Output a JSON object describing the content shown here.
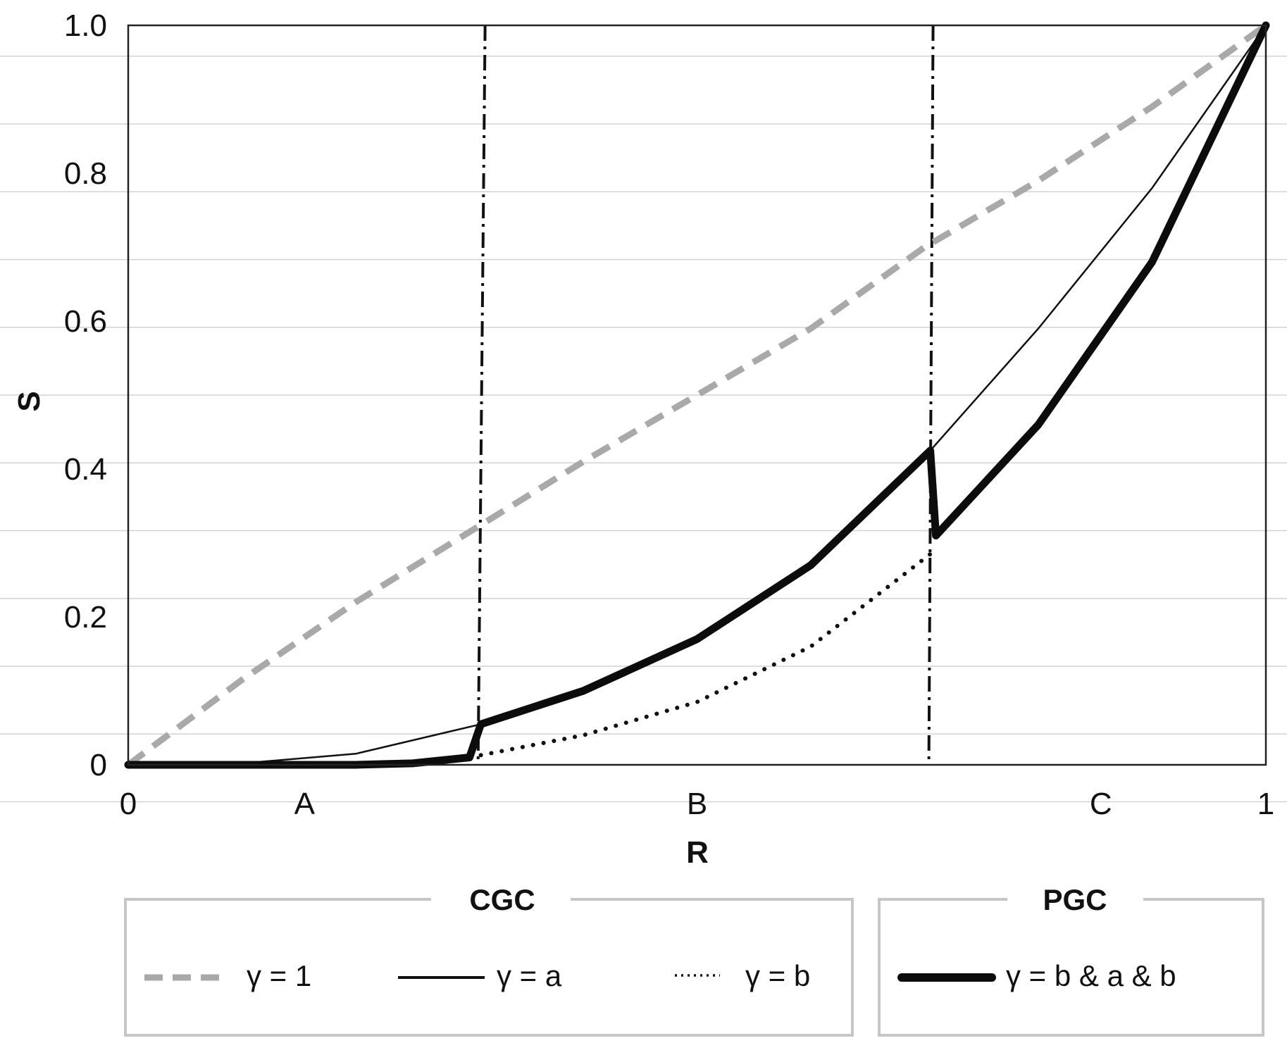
{
  "chart_data": {
    "type": "line",
    "title": "",
    "xlabel": "R",
    "ylabel": "S",
    "xlim": [
      0,
      1
    ],
    "ylim": [
      0,
      1
    ],
    "grid": "horizontal",
    "y_ticks": [
      {
        "value": 0,
        "label": "0"
      },
      {
        "value": 0.2,
        "label": "0.2"
      },
      {
        "value": 0.4,
        "label": "0.4"
      },
      {
        "value": 0.6,
        "label": "0.6"
      },
      {
        "value": 0.8,
        "label": "0.8"
      },
      {
        "value": 1.0,
        "label": "1.0"
      }
    ],
    "x_ticks": [
      {
        "value": 0,
        "label": "0"
      },
      {
        "value": 0.155,
        "label": "A"
      },
      {
        "value": 0.5,
        "label": "B"
      },
      {
        "value": 0.855,
        "label": "C"
      },
      {
        "value": 1,
        "label": "1"
      }
    ],
    "boundaries": [
      0.31,
      0.705
    ],
    "series": [
      {
        "name": "γ = 1",
        "group": "CGC",
        "style": "dashed-gray",
        "x": [
          0,
          0.1,
          0.2,
          0.3,
          0.4,
          0.5,
          0.6,
          0.7,
          0.8,
          0.9,
          1.0
        ],
        "y": [
          0,
          0.115,
          0.22,
          0.315,
          0.41,
          0.5,
          0.59,
          0.7,
          0.79,
          0.89,
          1.0
        ]
      },
      {
        "name": "γ = a",
        "group": "CGC",
        "style": "thin-solid",
        "x": [
          0,
          0.1,
          0.2,
          0.31,
          0.4,
          0.5,
          0.6,
          0.705,
          0.8,
          0.9,
          1.0
        ],
        "y": [
          0,
          0.002,
          0.015,
          0.055,
          0.1,
          0.17,
          0.27,
          0.425,
          0.59,
          0.78,
          1.0
        ]
      },
      {
        "name": "γ = b",
        "group": "CGC",
        "style": "dotted",
        "x": [
          0.31,
          0.4,
          0.5,
          0.6,
          0.705
        ],
        "y": [
          0.013,
          0.04,
          0.085,
          0.16,
          0.285
        ]
      },
      {
        "name": "γ = b & a & b",
        "group": "PGC",
        "style": "thick-solid",
        "x": [
          0,
          0.1,
          0.2,
          0.25,
          0.3,
          0.31,
          0.4,
          0.5,
          0.6,
          0.705,
          0.71,
          0.8,
          0.9,
          1.0
        ],
        "y": [
          0,
          0,
          0,
          0.002,
          0.01,
          0.055,
          0.1,
          0.17,
          0.27,
          0.425,
          0.31,
          0.46,
          0.68,
          1.0
        ]
      }
    ],
    "legend": {
      "placement": "bottom",
      "groups": [
        {
          "title": "CGC",
          "entries": [
            "γ = 1",
            "γ = a",
            "γ = b"
          ]
        },
        {
          "title": "PGC",
          "entries": [
            "γ = b & a & b"
          ]
        }
      ]
    }
  }
}
